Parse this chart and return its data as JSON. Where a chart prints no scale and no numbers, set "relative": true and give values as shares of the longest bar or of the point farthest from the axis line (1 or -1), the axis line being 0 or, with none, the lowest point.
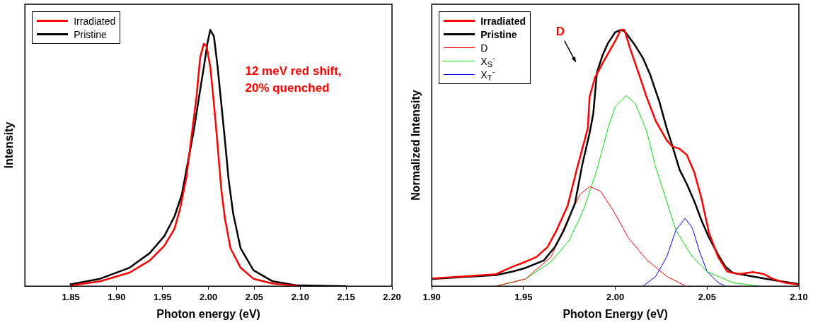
{
  "chart_data": [
    {
      "type": "line",
      "relative": true,
      "xlabel": "Photon energy (eV)",
      "ylabel": "Intensity",
      "legend": "top left",
      "grid": false,
      "marker": "none",
      "line_style": "solid",
      "xlim": [
        1.8,
        2.2
      ],
      "xticks": [
        1.85,
        {
          "value": 1.9,
          "label": "1.90"
        },
        1.95,
        {
          "value": 2.0,
          "label": "2.00"
        },
        2.05,
        {
          "value": 2.1,
          "label": "2.10"
        },
        2.15,
        {
          "value": 2.2,
          "label": "2.20"
        }
      ],
      "annotations": [
        "12 meV red shift,\n20% quenched"
      ],
      "series": [
        {
          "name": "Irradiated",
          "color": "#ff0000",
          "x": [
            1.849,
            1.882,
            1.914,
            1.936,
            1.952,
            1.963,
            1.969,
            1.976,
            1.981,
            1.987,
            1.991,
            1.995,
            1.998,
            2.002,
            2.006,
            2.01,
            2.014,
            2.018,
            2.024,
            2.035,
            2.049,
            2.07,
            2.097
          ],
          "values": [
            0.002,
            0.019,
            0.053,
            0.1,
            0.158,
            0.224,
            0.301,
            0.425,
            0.568,
            0.74,
            0.893,
            0.946,
            0.936,
            0.855,
            0.712,
            0.549,
            0.377,
            0.263,
            0.148,
            0.072,
            0.029,
            0.01,
            0.001
          ]
        },
        {
          "name": "Pristine",
          "color": "#000000",
          "x": [
            1.849,
            1.882,
            1.914,
            1.936,
            1.952,
            1.963,
            1.971,
            1.977,
            1.984,
            1.989,
            1.995,
            1.999,
            2.002,
            2.006,
            2.01,
            2.014,
            2.018,
            2.022,
            2.027,
            2.035,
            2.049,
            2.07,
            2.097,
            2.15
          ],
          "values": [
            0.007,
            0.029,
            0.072,
            0.129,
            0.196,
            0.272,
            0.358,
            0.473,
            0.606,
            0.721,
            0.855,
            0.95,
            1,
            0.974,
            0.855,
            0.712,
            0.568,
            0.415,
            0.282,
            0.148,
            0.062,
            0.019,
            0.003,
            0
          ]
        }
      ]
    },
    {
      "type": "line",
      "relative": true,
      "xlabel": "Photon Energy (eV)",
      "ylabel": "Normalized Intensity",
      "legend": "top left",
      "grid": false,
      "marker": "none",
      "line_style": "solid",
      "xlim": [
        1.9,
        2.1
      ],
      "xticks": [
        {
          "value": 1.9,
          "label": "1.90"
        },
        1.95,
        {
          "value": 2.0,
          "label": "2.00"
        },
        2.05,
        {
          "value": 2.1,
          "label": "2.10"
        }
      ],
      "annotations": [
        "D"
      ],
      "series": [
        {
          "name": "Irradiated",
          "color": "#ff0000",
          "x": [
            1.9,
            1.917,
            1.935,
            1.944,
            1.951,
            1.957,
            1.963,
            1.968,
            1.974,
            1.979,
            1.985,
            1.986,
            1.989,
            1.994,
            2.0,
            2.003,
            2.005,
            2.008,
            2.013,
            2.017,
            2.022,
            2.028,
            2.031,
            2.035,
            2.039,
            2.043,
            2.047,
            2.051,
            2.056,
            2.061,
            2.067,
            2.075,
            2.081,
            2.086,
            2.092,
            2.1
          ],
          "values": [
            0.03,
            0.038,
            0.047,
            0.076,
            0.095,
            0.114,
            0.152,
            0.218,
            0.313,
            0.455,
            0.616,
            0.739,
            0.815,
            0.882,
            0.957,
            1,
            1,
            0.929,
            0.825,
            0.739,
            0.645,
            0.569,
            0.545,
            0.536,
            0.512,
            0.445,
            0.341,
            0.209,
            0.114,
            0.057,
            0.047,
            0.055,
            0.047,
            0.028,
            0.014,
            0.005
          ]
        },
        {
          "name": "Pristine",
          "color": "#000000",
          "x": [
            1.9,
            1.917,
            1.935,
            1.944,
            1.951,
            1.961,
            1.967,
            1.972,
            1.978,
            1.982,
            1.986,
            1.988,
            1.99,
            1.993,
            1.996,
            2.0,
            2.003,
            2.005,
            2.01,
            2.015,
            2.019,
            2.024,
            2.028,
            2.031,
            2.035,
            2.039,
            2.043,
            2.047,
            2.051,
            2.056,
            2.06,
            2.064,
            2.075,
            2.086,
            2.1
          ],
          "values": [
            0.028,
            0.036,
            0.043,
            0.057,
            0.071,
            0.1,
            0.152,
            0.218,
            0.322,
            0.474,
            0.597,
            0.673,
            0.834,
            0.9,
            0.948,
            0.991,
            1,
            0.995,
            0.948,
            0.891,
            0.825,
            0.72,
            0.616,
            0.55,
            0.455,
            0.398,
            0.332,
            0.256,
            0.19,
            0.123,
            0.076,
            0.052,
            0.038,
            0.024,
            0.008
          ]
        },
        {
          "name": "D",
          "color": "#ff0000",
          "x": [
            1.935,
            1.951,
            1.965,
            1.975,
            1.981,
            1.986,
            1.992,
            1.999,
            2.007,
            2.017,
            2.028,
            2.038
          ],
          "values": [
            0,
            0.028,
            0.114,
            0.275,
            0.36,
            0.389,
            0.37,
            0.294,
            0.19,
            0.104,
            0.038,
            0.002
          ]
        },
        {
          "name": "X$_{S}$$^{-}$",
          "color": "#00dd00",
          "x": [
            1.935,
            1.951,
            1.965,
            1.975,
            1.983,
            1.99,
            1.996,
            2.0,
            2.006,
            2.011,
            2.017,
            2.022,
            2.028,
            2.033,
            2.042,
            2.05,
            2.064,
            2.078
          ],
          "values": [
            0,
            0.028,
            0.095,
            0.18,
            0.303,
            0.455,
            0.616,
            0.701,
            0.744,
            0.711,
            0.607,
            0.464,
            0.332,
            0.218,
            0.114,
            0.057,
            0.014,
            0
          ]
        },
        {
          "name": "X$_{T}$$^{-}$",
          "color": "#0000ff",
          "x": [
            2.015,
            2.022,
            2.028,
            2.033,
            2.038,
            2.042,
            2.046,
            2.05,
            2.056,
            2.06
          ],
          "values": [
            0,
            0.038,
            0.114,
            0.218,
            0.265,
            0.227,
            0.133,
            0.057,
            0.014,
            0
          ]
        }
      ]
    }
  ]
}
